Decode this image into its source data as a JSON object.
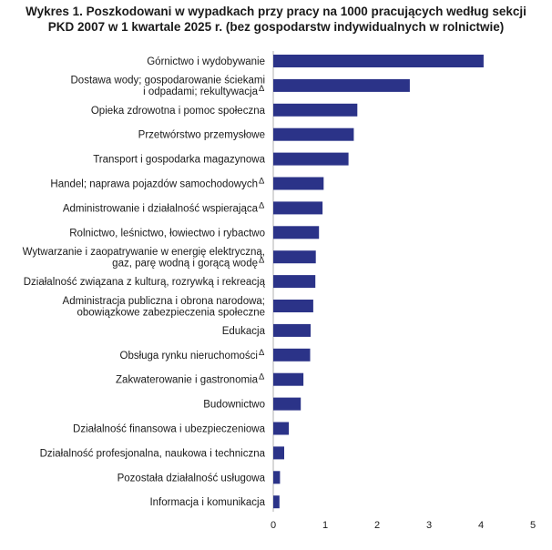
{
  "title_lines": [
    "Wykres 1. Poszkodowani w wypadkach przy pracy na 1000 pracujących według sekcji",
    "PKD 2007 w 1 kwartale 2025 r. (bez gospodarstw indywidualnych w rolnictwie)"
  ],
  "colors": {
    "bar": "#2b3388",
    "axis": "#b0b0b0",
    "text": "#1a1a1a"
  },
  "chart_data": {
    "type": "bar",
    "orientation": "horizontal",
    "title": "Wykres 1. Poszkodowani w wypadkach przy pracy na 1000 pracujących według sekcji PKD 2007 w 1 kwartale 2025 r. (bez gospodarstw indywidualnych w rolnictwie)",
    "xlabel": "",
    "ylabel": "",
    "xlim": [
      0,
      5
    ],
    "xticks": [
      0,
      1,
      2,
      3,
      4,
      5
    ],
    "grid": false,
    "categories": [
      {
        "lines": [
          "Górnictwo i wydobywanie"
        ],
        "value": 4.05,
        "delta": false
      },
      {
        "lines": [
          "Dostawa wody; gospodarowanie ściekami",
          "i odpadami; rekultywacja"
        ],
        "value": 2.63,
        "delta": true
      },
      {
        "lines": [
          "Opieka zdrowotna i pomoc społeczna"
        ],
        "value": 1.62,
        "delta": false
      },
      {
        "lines": [
          "Przetwórstwo przemysłowe"
        ],
        "value": 1.55,
        "delta": false
      },
      {
        "lines": [
          "Transport i gospodarka magazynowa"
        ],
        "value": 1.45,
        "delta": false
      },
      {
        "lines": [
          "Handel; naprawa pojazdów samochodowych"
        ],
        "value": 0.97,
        "delta": true
      },
      {
        "lines": [
          "Administrowanie i działalność wspierająca"
        ],
        "value": 0.95,
        "delta": true
      },
      {
        "lines": [
          "Rolnictwo, leśnictwo, łowiectwo i rybactwo"
        ],
        "value": 0.88,
        "delta": false
      },
      {
        "lines": [
          "Wytwarzanie i zaopatrywanie w energię elektryczną,",
          "gaz, parę wodną i gorącą wodę"
        ],
        "value": 0.82,
        "delta": true
      },
      {
        "lines": [
          "Działalność związana z kulturą, rozrywką i rekreacją"
        ],
        "value": 0.81,
        "delta": false
      },
      {
        "lines": [
          "Administracja publiczna i obrona narodowa;",
          "obowiązkowe zabezpieczenia społeczne"
        ],
        "value": 0.77,
        "delta": false
      },
      {
        "lines": [
          "Edukacja"
        ],
        "value": 0.72,
        "delta": false
      },
      {
        "lines": [
          "Obsługa rynku nieruchomości"
        ],
        "value": 0.71,
        "delta": true
      },
      {
        "lines": [
          "Zakwaterowanie i gastronomia"
        ],
        "value": 0.58,
        "delta": true
      },
      {
        "lines": [
          "Budownictwo"
        ],
        "value": 0.53,
        "delta": false
      },
      {
        "lines": [
          "Działalność finansowa i ubezpieczeniowa"
        ],
        "value": 0.3,
        "delta": false
      },
      {
        "lines": [
          "Działalność profesjonalna, naukowa i techniczna"
        ],
        "value": 0.21,
        "delta": false
      },
      {
        "lines": [
          "Pozostała działalność usługowa"
        ],
        "value": 0.13,
        "delta": false
      },
      {
        "lines": [
          "Informacja i komunikacja"
        ],
        "value": 0.12,
        "delta": false
      }
    ]
  }
}
